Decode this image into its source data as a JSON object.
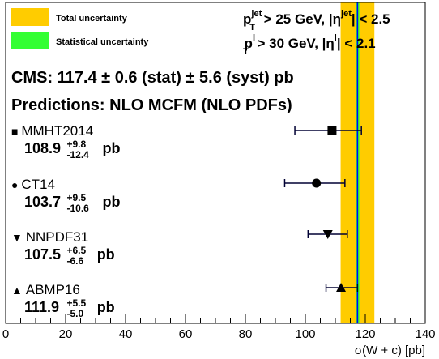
{
  "chart_data": {
    "type": "scatter",
    "orientation": "horizontal",
    "xlabel": "σ(W + c) [pb]",
    "xlim": [
      0,
      140
    ],
    "xticks": [
      0,
      20,
      40,
      60,
      80,
      100,
      120,
      140
    ],
    "legend": {
      "placement": "top-left",
      "entries": [
        {
          "label": "Total uncertainty",
          "color": "#ffcc00"
        },
        {
          "label": "Statistical uncertainty",
          "color": "#33ff33"
        }
      ]
    },
    "cuts": [
      {
        "p_label": "p",
        "sup": "jet",
        "sub": "T",
        "text_a": " > 25 GeV, |η",
        "eta_sup": "jet",
        "text_b": "| < 2.5"
      },
      {
        "p_label": "p",
        "sup": "l",
        "sub": "T",
        "text_a": " > 30 GeV, |η",
        "eta_sup": "l",
        "text_b": "| < 2.1"
      }
    ],
    "measurement": {
      "text": "CMS: 117.4 ± 0.6  (stat) ± 5.6  (syst) pb",
      "central": 117.4,
      "stat": 0.6,
      "syst": 5.6,
      "total": 5.63
    },
    "predictions_title": "Predictions: NLO MCFM (NLO PDFs)",
    "series": [
      {
        "name": "MMHT2014",
        "marker": "square",
        "marker_glyph": "■",
        "value": 108.9,
        "err_up": 9.8,
        "err_down": 12.4,
        "value_text": "108.9",
        "up_text": "+9.8",
        "down_text": "-12.4",
        "unit": "pb"
      },
      {
        "name": "CT14",
        "marker": "circle",
        "marker_glyph": "●",
        "value": 103.7,
        "err_up": 9.5,
        "err_down": 10.6,
        "value_text": "103.7",
        "up_text": "+9.5",
        "down_text": "-10.6",
        "unit": "pb"
      },
      {
        "name": "NNPDF31",
        "marker": "triangle-down",
        "marker_glyph": "▼",
        "value": 107.5,
        "err_up": 6.5,
        "err_down": 6.6,
        "value_text": "107.5",
        "up_text": "+6.5",
        "down_text": "-6.6",
        "unit": "pb"
      },
      {
        "name": "ABMP16",
        "marker": "triangle-up",
        "marker_glyph": "▲",
        "value": 111.9,
        "err_up": 5.5,
        "err_down": 5.0,
        "value_text": "111.9",
        "up_text": "+5.5",
        "down_text": "-5.0",
        "unit": "pb"
      }
    ],
    "colors": {
      "total_band": "#ffcc00",
      "stat_band": "#33ff33",
      "central_line": "#0000ff",
      "error_bar": "#000033"
    }
  }
}
